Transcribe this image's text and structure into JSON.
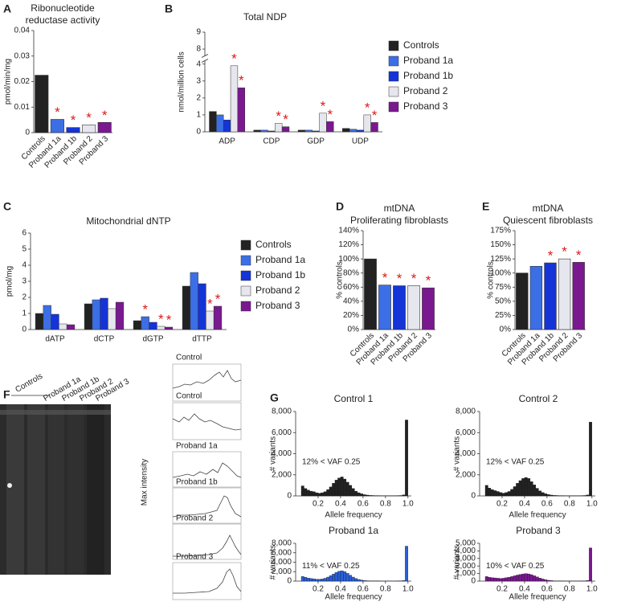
{
  "chart_data": [
    {
      "panel": "A",
      "type": "bar",
      "title": [
        "Ribonucleotide",
        "reductase activity"
      ],
      "y_label": "pmol/min/mg",
      "categories": [
        "Controls",
        "Proband 1a",
        "Proband 1b",
        "Proband 2",
        "Proband 3"
      ],
      "values": [
        0.0225,
        0.0052,
        0.002,
        0.003,
        0.004
      ],
      "colors": [
        "#222222",
        "#3c6fe6",
        "#1434d8",
        "#e6e6ee",
        "#7a1890"
      ],
      "significance": [
        null,
        "*",
        "*",
        "*",
        "*"
      ],
      "ylim": [
        0,
        0.04
      ],
      "yticks": [
        0,
        0.01,
        0.02,
        0.03,
        0.04
      ]
    },
    {
      "panel": "B",
      "type": "grouped_bar",
      "title": [
        "Total NDP"
      ],
      "y_label": "nmol/million cells",
      "categories": [
        "ADP",
        "CDP",
        "GDP",
        "UDP"
      ],
      "series": [
        {
          "name": "Controls",
          "color": "#222222",
          "values": [
            1.2,
            0.1,
            0.1,
            0.2
          ]
        },
        {
          "name": "Proband 1a",
          "color": "#3c6fe6",
          "values": [
            1.0,
            0.1,
            0.1,
            0.15
          ]
        },
        {
          "name": "Proband 1b",
          "color": "#1434d8",
          "values": [
            0.7,
            0.05,
            0.05,
            0.1
          ]
        },
        {
          "name": "Proband 2",
          "color": "#e6e6ee",
          "values": [
            3.9,
            0.5,
            1.1,
            1.0
          ],
          "significance": [
            "*",
            "*",
            "*",
            "*"
          ]
        },
        {
          "name": "Proband 3",
          "color": "#7a1890",
          "values": [
            2.6,
            0.3,
            0.6,
            0.55
          ],
          "significance": [
            "*",
            "*",
            "*",
            "*"
          ]
        }
      ],
      "ylim": [
        0,
        9
      ],
      "ybreak": [
        4.2,
        7.6
      ],
      "yticks": [
        0,
        1,
        2,
        3,
        4,
        8,
        9
      ],
      "legend": "right"
    },
    {
      "panel": "C",
      "type": "grouped_bar",
      "title": [
        "Mitochondrial dNTP"
      ],
      "y_label": "pmol/mg",
      "categories": [
        "dATP",
        "dCTP",
        "dGTP",
        "dTTP"
      ],
      "series": [
        {
          "name": "Controls",
          "color": "#222222",
          "values": [
            1.0,
            1.6,
            0.55,
            2.7
          ]
        },
        {
          "name": "Proband 1a",
          "color": "#3c6fe6",
          "values": [
            1.5,
            1.85,
            0.8,
            3.55
          ],
          "significance": [
            null,
            null,
            "*",
            null
          ]
        },
        {
          "name": "Proband 1b",
          "color": "#1434d8",
          "values": [
            0.95,
            1.95,
            0.45,
            2.85
          ]
        },
        {
          "name": "Proband 2",
          "color": "#e6e6ee",
          "values": [
            0.35,
            1.3,
            0.2,
            1.15
          ],
          "significance": [
            null,
            null,
            "*",
            "*"
          ]
        },
        {
          "name": "Proband 3",
          "color": "#7a1890",
          "values": [
            0.3,
            1.7,
            0.15,
            1.45
          ],
          "significance": [
            null,
            null,
            "*",
            "*"
          ]
        }
      ],
      "ylim": [
        0,
        6
      ],
      "yticks": [
        0,
        1,
        2,
        3,
        4,
        5,
        6
      ],
      "legend": "right"
    },
    {
      "panel": "D",
      "type": "bar",
      "title": [
        "mtDNA",
        "Proliferating fibroblasts"
      ],
      "y_label": "% controls",
      "categories": [
        "Controls",
        "Proband 1a",
        "Proband 1b",
        "Proband 2",
        "Proband 3"
      ],
      "values": [
        100,
        63,
        62,
        62,
        59
      ],
      "colors": [
        "#222222",
        "#3c6fe6",
        "#1434d8",
        "#e6e6ee",
        "#7a1890"
      ],
      "significance": [
        null,
        "*",
        "*",
        "*",
        "*"
      ],
      "ylim": [
        0,
        140
      ],
      "yticks": [
        {
          "value": 0,
          "label": "0%"
        },
        {
          "value": 20,
          "label": "20%"
        },
        {
          "value": 40,
          "label": "40%"
        },
        {
          "value": 60,
          "label": "60%"
        },
        {
          "value": 80,
          "label": "80%"
        },
        {
          "value": 100,
          "label": "100%"
        },
        {
          "value": 120,
          "label": "120%"
        },
        {
          "value": 140,
          "label": "140%"
        }
      ]
    },
    {
      "panel": "E",
      "type": "bar",
      "title": [
        "mtDNA",
        "Quiescent fibroblasts"
      ],
      "y_label": "% controls",
      "categories": [
        "Controls",
        "Proband 1a",
        "Proband 1b",
        "Proband 2",
        "Proband 3"
      ],
      "values": [
        100,
        112,
        118,
        125,
        119
      ],
      "colors": [
        "#222222",
        "#3c6fe6",
        "#1434d8",
        "#e6e6ee",
        "#7a1890"
      ],
      "significance": [
        null,
        null,
        "*",
        "*",
        "*"
      ],
      "ylim": [
        0,
        175
      ],
      "yticks": [
        {
          "value": 0,
          "label": "0%"
        },
        {
          "value": 25,
          "label": "25%"
        },
        {
          "value": 50,
          "label": "50%"
        },
        {
          "value": 75,
          "label": "75%"
        },
        {
          "value": 100,
          "label": "100%"
        },
        {
          "value": 125,
          "label": "125%"
        },
        {
          "value": 150,
          "label": "150%"
        },
        {
          "value": 175,
          "label": "175%"
        }
      ]
    },
    {
      "panel": "G",
      "type": "histogram",
      "title": [
        "Control 1"
      ],
      "annotation": "12% < VAF 0.25",
      "x_label": "Allele frequency",
      "y_label": "# variants",
      "color": "#222222",
      "bins": [
        0.05,
        0.075,
        0.1,
        0.125,
        0.15,
        0.175,
        0.2,
        0.225,
        0.25,
        0.275,
        0.3,
        0.325,
        0.35,
        0.375,
        0.4,
        0.425,
        0.45,
        0.475,
        0.5,
        0.525,
        0.55,
        0.575,
        0.6,
        0.625,
        0.65,
        0.675,
        0.7,
        0.725,
        0.75,
        0.775,
        0.8,
        0.825,
        0.85,
        0.875,
        0.9,
        0.925,
        0.95,
        0.975,
        1.0
      ],
      "values": [
        950,
        700,
        550,
        450,
        400,
        300,
        250,
        300,
        400,
        600,
        850,
        1200,
        1500,
        1700,
        1800,
        1600,
        1300,
        1000,
        700,
        450,
        300,
        200,
        120,
        80,
        50,
        40,
        30,
        30,
        20,
        20,
        20,
        20,
        20,
        20,
        30,
        40,
        100,
        7200
      ],
      "xlim": [
        0,
        1.03
      ],
      "xticks": [
        0.2,
        0.4,
        0.6,
        0.8,
        {
          "value": 1,
          "label": "1.0"
        }
      ],
      "ylim": [
        0,
        8000
      ],
      "yticks": [
        0,
        {
          "value": 2000,
          "label": "2,000"
        },
        {
          "value": 4000,
          "label": "4,000"
        },
        {
          "value": 6000,
          "label": "6,000"
        },
        {
          "value": 8000,
          "label": "8,000"
        }
      ]
    },
    {
      "type": "histogram",
      "title": [
        "Control 2"
      ],
      "annotation": "12% < VAF 0.25",
      "x_label": "Allele frequency",
      "y_label": "# variants",
      "color": "#222222",
      "bins": [
        0.05,
        0.075,
        0.1,
        0.125,
        0.15,
        0.175,
        0.2,
        0.225,
        0.25,
        0.275,
        0.3,
        0.325,
        0.35,
        0.375,
        0.4,
        0.425,
        0.45,
        0.475,
        0.5,
        0.525,
        0.55,
        0.575,
        0.6,
        0.625,
        0.65,
        0.675,
        0.7,
        0.725,
        0.75,
        0.775,
        0.8,
        0.825,
        0.85,
        0.875,
        0.9,
        0.925,
        0.95,
        0.975,
        1.0
      ],
      "values": [
        1000,
        750,
        600,
        500,
        420,
        320,
        260,
        320,
        420,
        620,
        880,
        1200,
        1450,
        1650,
        1750,
        1650,
        1350,
        1050,
        720,
        480,
        320,
        210,
        130,
        80,
        50,
        40,
        30,
        30,
        20,
        20,
        20,
        20,
        20,
        20,
        30,
        40,
        90,
        7000
      ],
      "xlim": [
        0,
        1.03
      ],
      "xticks": [
        0.2,
        0.4,
        0.6,
        0.8,
        {
          "value": 1,
          "label": "1.0"
        }
      ],
      "ylim": [
        0,
        8000
      ],
      "yticks": [
        0,
        {
          "value": 2000,
          "label": "2,000"
        },
        {
          "value": 4000,
          "label": "4,000"
        },
        {
          "value": 6000,
          "label": "6,000"
        },
        {
          "value": 8000,
          "label": "8,000"
        }
      ]
    },
    {
      "type": "histogram",
      "title": [
        "Proband 1a"
      ],
      "annotation": "11% < VAF 0.25",
      "x_label": "Allele frequency",
      "y_label": "# variants",
      "color": "#2a5fd8",
      "bins": [
        0.05,
        0.075,
        0.1,
        0.125,
        0.15,
        0.175,
        0.2,
        0.225,
        0.25,
        0.275,
        0.3,
        0.325,
        0.35,
        0.375,
        0.4,
        0.425,
        0.45,
        0.475,
        0.5,
        0.525,
        0.55,
        0.575,
        0.6,
        0.625,
        0.65,
        0.675,
        0.7,
        0.725,
        0.75,
        0.775,
        0.8,
        0.825,
        0.85,
        0.875,
        0.9,
        0.925,
        0.95,
        0.975,
        1.0
      ],
      "values": [
        1000,
        800,
        650,
        560,
        480,
        400,
        380,
        450,
        600,
        850,
        1150,
        1500,
        1850,
        2100,
        2200,
        2000,
        1650,
        1250,
        850,
        550,
        350,
        220,
        130,
        80,
        50,
        40,
        30,
        30,
        20,
        20,
        20,
        20,
        20,
        20,
        30,
        40,
        120,
        7400
      ],
      "xlim": [
        0,
        1.03
      ],
      "xticks": [
        0.2,
        0.4,
        0.6,
        0.8,
        {
          "value": 1,
          "label": "1.0"
        }
      ],
      "ylim": [
        0,
        8000
      ],
      "yticks": [
        0,
        {
          "value": 2000,
          "label": "2,000"
        },
        {
          "value": 4000,
          "label": "4,000"
        },
        {
          "value": 6000,
          "label": "6,000"
        },
        {
          "value": 8000,
          "label": "8,000"
        }
      ]
    },
    {
      "type": "histogram",
      "title": [
        "Proband 3"
      ],
      "annotation": "10% < VAF 0.25",
      "x_label": "Allele frequency",
      "y_label": "# variants",
      "color": "#7a1890",
      "bins": [
        0.05,
        0.075,
        0.1,
        0.125,
        0.15,
        0.175,
        0.2,
        0.225,
        0.25,
        0.275,
        0.3,
        0.325,
        0.35,
        0.375,
        0.4,
        0.425,
        0.45,
        0.475,
        0.5,
        0.525,
        0.55,
        0.575,
        0.6,
        0.625,
        0.65,
        0.675,
        0.7,
        0.725,
        0.75,
        0.775,
        0.8,
        0.825,
        0.85,
        0.875,
        0.9,
        0.925,
        0.95,
        0.975,
        1.0
      ],
      "values": [
        600,
        500,
        450,
        420,
        380,
        350,
        380,
        450,
        520,
        600,
        700,
        800,
        880,
        950,
        1000,
        950,
        850,
        700,
        550,
        400,
        280,
        180,
        110,
        70,
        40,
        30,
        20,
        20,
        15,
        15,
        15,
        15,
        15,
        15,
        20,
        30,
        80,
        4400
      ],
      "xlim": [
        0,
        1.03
      ],
      "xticks": [
        0.2,
        0.4,
        0.6,
        0.8,
        {
          "value": 1,
          "label": "1.0"
        }
      ],
      "ylim": [
        0,
        5000
      ],
      "yticks": [
        0,
        {
          "value": 1000,
          "label": "1,000"
        },
        {
          "value": 2000,
          "label": "2,000"
        },
        {
          "value": 3000,
          "label": "3,000"
        },
        {
          "value": 4000,
          "label": "4,000"
        },
        {
          "value": 5000,
          "label": "5,000"
        }
      ]
    }
  ],
  "gel": {
    "panel": "F",
    "lanes": [
      "Controls",
      "Proband 1a",
      "Proband 1b",
      "Proband 2",
      "Proband 3"
    ],
    "y_label": "Max intensity",
    "profiles": [
      "Control",
      "Control",
      "Proband 1a",
      "Proband 1b",
      "Proband 2",
      "Proband 3"
    ]
  }
}
